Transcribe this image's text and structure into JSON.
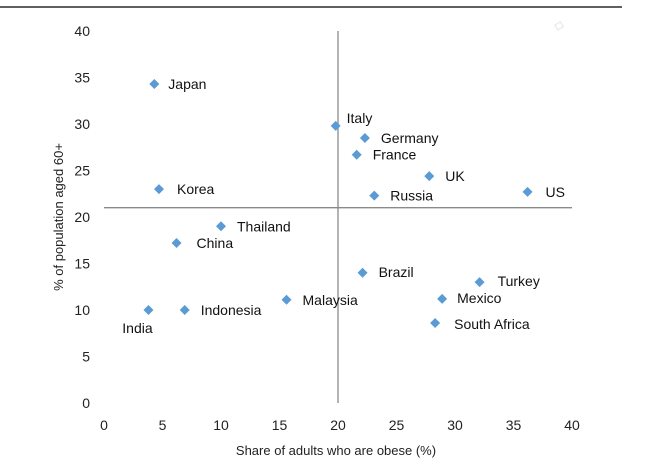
{
  "chart_data": {
    "type": "scatter",
    "title": "",
    "xlabel": "Share of adults who are obese (%)",
    "ylabel": "% of population aged 60+",
    "xlim": [
      0,
      40
    ],
    "ylim": [
      0,
      40
    ],
    "x_ticks": [
      "0",
      "5",
      "10",
      "15",
      "20",
      "25",
      "30",
      "35",
      "40"
    ],
    "y_ticks": [
      "0",
      "5",
      "10",
      "15",
      "20",
      "25",
      "30",
      "35",
      "40"
    ],
    "reference_lines": {
      "x": 20,
      "y": 21
    },
    "grid": false,
    "marker": "diamond",
    "marker_color": "#5b9bd5",
    "points": [
      {
        "label": "Japan",
        "x": 4.3,
        "y": 34.3
      },
      {
        "label": "Italy",
        "x": 19.8,
        "y": 29.8
      },
      {
        "label": "Germany",
        "x": 22.3,
        "y": 28.5
      },
      {
        "label": "France",
        "x": 21.6,
        "y": 26.7
      },
      {
        "label": "UK",
        "x": 27.8,
        "y": 24.4
      },
      {
        "label": "Russia",
        "x": 23.1,
        "y": 22.3
      },
      {
        "label": "US",
        "x": 36.2,
        "y": 22.7
      },
      {
        "label": "Korea",
        "x": 4.7,
        "y": 23.0
      },
      {
        "label": "Thailand",
        "x": 10.0,
        "y": 19.0
      },
      {
        "label": "China",
        "x": 6.2,
        "y": 17.2
      },
      {
        "label": "Brazil",
        "x": 22.1,
        "y": 14.0
      },
      {
        "label": "Turkey",
        "x": 32.1,
        "y": 13.0
      },
      {
        "label": "Mexico",
        "x": 28.9,
        "y": 11.2
      },
      {
        "label": "Malaysia",
        "x": 15.6,
        "y": 11.1
      },
      {
        "label": "Indonesia",
        "x": 6.9,
        "y": 10.0
      },
      {
        "label": "India",
        "x": 3.8,
        "y": 10.0
      },
      {
        "label": "South Africa",
        "x": 28.3,
        "y": 8.6
      }
    ]
  }
}
